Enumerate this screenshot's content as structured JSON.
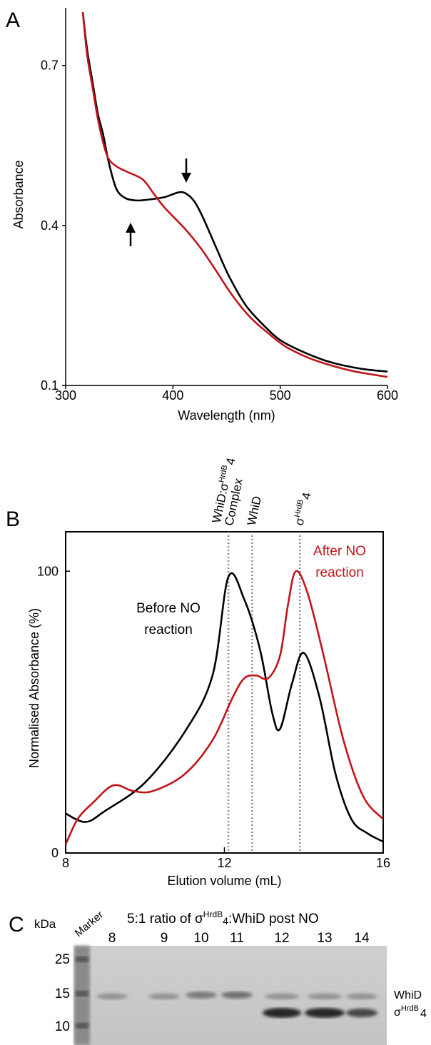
{
  "chart_data": [
    {
      "type": "line",
      "label": "A",
      "x_label": "Wavelength (nm)",
      "y_label": "Absorbance",
      "xlim": [
        300,
        600
      ],
      "ylim": [
        0.1,
        0.8
      ],
      "xticks": [
        300,
        400,
        500,
        600
      ],
      "yticks": [
        0.1,
        0.4,
        0.7
      ],
      "frame": false,
      "series": [
        {
          "color": "#000000",
          "x": [
            316,
            320,
            325,
            330,
            335,
            340,
            347,
            355,
            365,
            375,
            392,
            405,
            412,
            420,
            428,
            440,
            452,
            468,
            485,
            500,
            518,
            540,
            558,
            580,
            600
          ],
          "values": [
            0.8,
            0.73,
            0.67,
            0.61,
            0.57,
            0.52,
            0.47,
            0.452,
            0.447,
            0.448,
            0.453,
            0.462,
            0.46,
            0.445,
            0.415,
            0.36,
            0.306,
            0.25,
            0.212,
            0.185,
            0.166,
            0.148,
            0.138,
            0.13,
            0.126
          ]
        },
        {
          "color": "#c0151b",
          "x": [
            316,
            320,
            325,
            330,
            335,
            340,
            348,
            358,
            372,
            382,
            392,
            412,
            425,
            438,
            455,
            472,
            490,
            505,
            525,
            545,
            570,
            600
          ],
          "values": [
            0.8,
            0.72,
            0.66,
            0.6,
            0.555,
            0.525,
            0.51,
            0.5,
            0.486,
            0.46,
            0.434,
            0.392,
            0.36,
            0.322,
            0.27,
            0.228,
            0.196,
            0.173,
            0.153,
            0.139,
            0.126,
            0.116
          ]
        }
      ]
    },
    {
      "type": "line",
      "label": "B",
      "x_label": "Elution volume (mL)",
      "y_label": "Normalised Absorbance (%)",
      "xlim": [
        8,
        16
      ],
      "ylim": [
        0,
        114
      ],
      "xticks": [
        8,
        12,
        16
      ],
      "yticks": [
        0,
        100
      ],
      "frame": true,
      "markers": [
        {
          "x": 12.1,
          "text": "WhiD:σ",
          "sup": "HrdB",
          "sub": "4",
          "line2": "Complex"
        },
        {
          "x": 12.7,
          "text": "WhiD"
        },
        {
          "x": 13.9,
          "text": "σ",
          "sup": "HrdB",
          "sub": "4"
        }
      ],
      "series": [
        {
          "color": "#000000",
          "label_lines": [
            "Before NO",
            "reaction"
          ],
          "x": [
            8,
            8.5,
            9,
            10,
            11,
            11.7,
            12.1,
            12.5,
            12.9,
            13.2,
            13.4,
            13.7,
            14.0,
            14.4,
            14.8,
            15.2,
            15.6,
            16
          ],
          "values": [
            14,
            11,
            15,
            25,
            43,
            63,
            98,
            90,
            72,
            50,
            44,
            60,
            71,
            55,
            28,
            12,
            7,
            4
          ]
        },
        {
          "color": "#c0151b",
          "label_lines": [
            "After NO",
            "reaction"
          ],
          "x": [
            8,
            8.3,
            8.7,
            9.2,
            9.7,
            10.2,
            11,
            11.7,
            12.2,
            12.5,
            12.8,
            13.1,
            13.4,
            13.6,
            13.8,
            14.1,
            14.5,
            15,
            15.5,
            16
          ],
          "values": [
            3,
            12,
            18,
            24,
            22,
            22,
            28,
            40,
            55,
            62,
            63,
            62,
            70,
            88,
            100,
            92,
            70,
            40,
            20,
            12
          ]
        }
      ]
    }
  ],
  "gel": {
    "label": "C",
    "unit": "kDa",
    "marker": "Marker",
    "title": {
      "pre": "5:1 ratio of σ",
      "sup": "HrdB",
      "sub": "4",
      "post": ":WhiD post NO"
    },
    "lanes": [
      "8",
      "9",
      "10",
      "11",
      "12",
      "13",
      "14"
    ],
    "sizes": [
      "25",
      "15",
      "10"
    ],
    "band_labels": [
      {
        "text": "WhiD"
      },
      {
        "text": "σ",
        "sup": "HrdB",
        "sub": "4"
      }
    ]
  }
}
